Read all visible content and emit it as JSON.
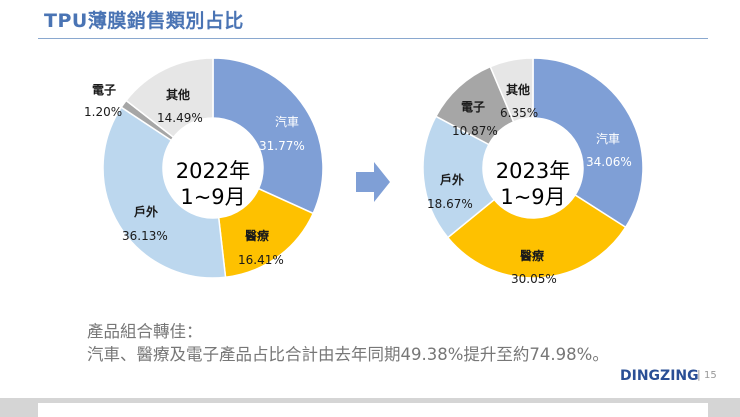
{
  "title": "TPU薄膜銷售類別占比",
  "colors": {
    "汽車": "#7f9fd6",
    "醫療": "#fec100",
    "戶外": "#bcd7ee",
    "其他": "#e6e6e6",
    "電子_2022": "#a6a6a6",
    "電子_2023": "#a6a6a6",
    "arrow": "#7f9fd6",
    "title": "#4a74b4"
  },
  "chart_data": [
    {
      "type": "pie",
      "donut": true,
      "title": "2022年 1~9月",
      "center_line1": "2022年",
      "center_line2": "1~9月",
      "slices": [
        {
          "label": "汽車",
          "value": 31.77,
          "display": "31.77%"
        },
        {
          "label": "醫療",
          "value": 16.41,
          "display": "16.41%"
        },
        {
          "label": "戶外",
          "value": 36.13,
          "display": "36.13%"
        },
        {
          "label": "電子",
          "value": 1.2,
          "display": "1.20%"
        },
        {
          "label": "其他",
          "value": 14.49,
          "display": "14.49%"
        }
      ]
    },
    {
      "type": "pie",
      "donut": true,
      "title": "2023年 1~9月",
      "center_line1": "2023年",
      "center_line2": "1~9月",
      "slices": [
        {
          "label": "汽車",
          "value": 34.06,
          "display": "34.06%"
        },
        {
          "label": "醫療",
          "value": 30.05,
          "display": "30.05%"
        },
        {
          "label": "戶外",
          "value": 18.67,
          "display": "18.67%"
        },
        {
          "label": "電子",
          "value": 10.87,
          "display": "10.87%"
        },
        {
          "label": "其他",
          "value": 6.35,
          "display": "6.35%"
        }
      ]
    }
  ],
  "summary": {
    "line1": "產品組合轉佳：",
    "line2": "汽車、醫療及電子產品占比合計由去年同期49.38%提升至約74.98%。"
  },
  "footer": {
    "logo": "DINGZING",
    "separator": "|",
    "page_number": "15"
  }
}
